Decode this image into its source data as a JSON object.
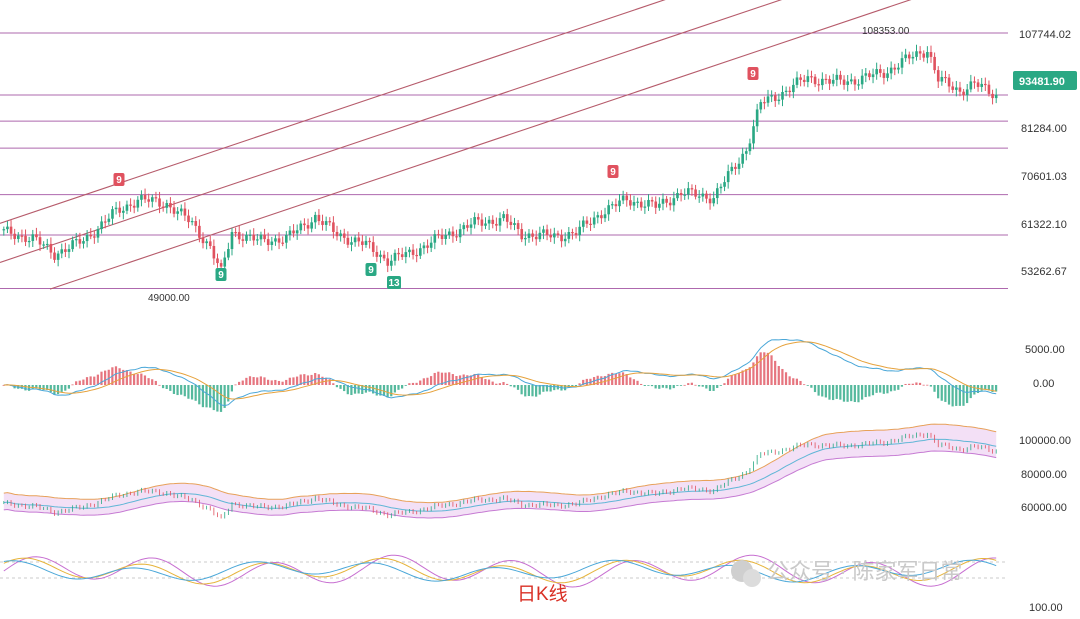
{
  "chart_data": {
    "type": "candlestick",
    "caption": "日K线",
    "watermark": "公众号 · 陈家军日常",
    "price_axis": {
      "labels": [
        "107744.02",
        "81284.00",
        "70601.03",
        "61322.10",
        "53262.67"
      ],
      "current_price": "93481.90",
      "accent": "#2aa884"
    },
    "annotations": {
      "high": "108353.00",
      "low": "49000.00",
      "td_counts": [
        {
          "text": "9",
          "kind": "sell"
        },
        {
          "text": "9",
          "kind": "buy"
        },
        {
          "text": "9",
          "kind": "buy"
        },
        {
          "text": "13",
          "kind": "buy"
        },
        {
          "text": "9",
          "kind": "sell"
        },
        {
          "text": "9",
          "kind": "sell"
        }
      ]
    },
    "horizontal_levels": [
      107744,
      93482,
      87500,
      81284,
      70601,
      61322,
      49000
    ],
    "channel": {
      "lower_start": 45000,
      "mid_start": 55000,
      "upper_start": 64000,
      "slope_per_bar": 280
    },
    "macd_panel": {
      "labels": [
        "5000.00",
        "0.00"
      ]
    },
    "band_panel": {
      "labels": [
        "100000.00",
        "80000.00",
        "60000.00"
      ]
    },
    "osc_panel": {
      "labels": [
        "100.00"
      ]
    },
    "colors": {
      "up": "#2aa884",
      "down": "#e0525f",
      "sell_badge": "#e0525f",
      "buy_badge": "#2aa884",
      "level": "#a04ea0",
      "channel": "#b65b6b"
    }
  }
}
